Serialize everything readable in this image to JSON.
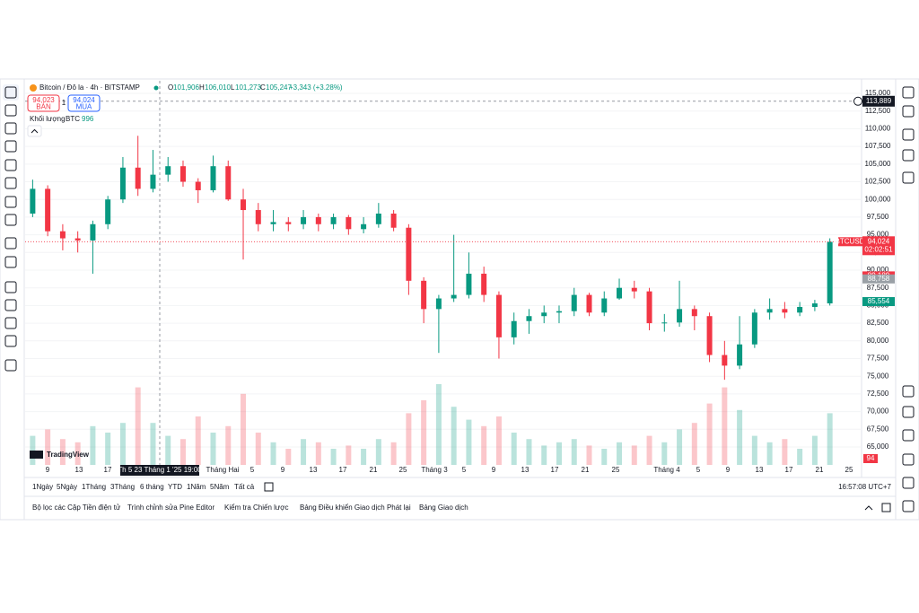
{
  "header": {
    "symbol": "Bitcoin / Đô la · 4h · BITSTAMP",
    "ohlc": [
      {
        "key": "O",
        "value": "101,906"
      },
      {
        "key": "H",
        "value": "106,010"
      },
      {
        "key": "L",
        "value": "101,273"
      },
      {
        "key": "C",
        "value": "105,247"
      }
    ],
    "change": "+3,343 (+3.28%)",
    "sell": {
      "price": "94,023",
      "label": "BÁN"
    },
    "spread": "1",
    "buy": {
      "price": "94,024",
      "label": "MUA"
    },
    "volume_label": "Khối lượng",
    "volume_unit": "BTC",
    "volume_value": "996"
  },
  "chart_data": {
    "type": "candlestick",
    "symbol_tag": "BTCUSD",
    "logo": "TradingView",
    "up_color": "#089981",
    "down_color": "#f23645",
    "open": [
      98000,
      101500,
      95500,
      94500,
      94200,
      96500,
      100000,
      104500,
      101500,
      103500,
      104700,
      102500,
      101300,
      104700,
      100000,
      98500,
      96500,
      96800,
      96500,
      97500,
      96500,
      97500,
      95800,
      96500,
      98000,
      96000,
      88500,
      84500,
      86000,
      86500,
      89500,
      86500,
      80500,
      82800,
      83500,
      84000,
      84200,
      86500,
      84000,
      86000,
      87500,
      87000,
      82500,
      82600,
      84500,
      83500,
      78000,
      76500,
      79500,
      84000,
      84500,
      84000,
      84800,
      85300
    ],
    "high": [
      102800,
      102000,
      96500,
      95500,
      97000,
      100500,
      106000,
      109000,
      107000,
      106000,
      105500,
      103000,
      106200,
      105500,
      101500,
      99500,
      98500,
      97500,
      98500,
      98000,
      98000,
      97800,
      97500,
      99500,
      98500,
      96500,
      89000,
      86500,
      95000,
      92500,
      90500,
      87000,
      84000,
      84500,
      85000,
      85000,
      87500,
      86800,
      87000,
      88800,
      88500,
      87500,
      83800,
      88500,
      85000,
      84000,
      80000,
      83500,
      84500,
      86000,
      85500,
      85500,
      85800,
      94500
    ],
    "low": [
      97500,
      94800,
      92800,
      92500,
      89500,
      95800,
      99500,
      100500,
      101000,
      102500,
      101800,
      99500,
      101000,
      99800,
      91500,
      95500,
      95500,
      95500,
      95800,
      95500,
      95800,
      95000,
      95200,
      96000,
      95500,
      86500,
      82500,
      78300,
      85500,
      86000,
      85500,
      77500,
      79500,
      81000,
      82500,
      82500,
      83500,
      83500,
      83500,
      85800,
      86000,
      81500,
      81300,
      82000,
      81500,
      77000,
      74500,
      76000,
      79000,
      83000,
      83200,
      83500,
      84200,
      85000
    ],
    "close": [
      101500,
      95500,
      94500,
      94200,
      96500,
      100000,
      104500,
      101500,
      103500,
      104700,
      102500,
      101300,
      104700,
      100000,
      98500,
      96500,
      96800,
      96500,
      97500,
      96500,
      97500,
      95800,
      96500,
      98000,
      96000,
      88500,
      84500,
      86000,
      86500,
      89500,
      86500,
      80500,
      82800,
      83500,
      84000,
      84200,
      86500,
      84000,
      86000,
      87500,
      87000,
      82500,
      82600,
      84500,
      83500,
      78000,
      76500,
      79500,
      84000,
      84500,
      84000,
      84800,
      85300,
      94000
    ],
    "volume": [
      900,
      1100,
      800,
      700,
      1200,
      1000,
      1300,
      2400,
      1300,
      900,
      800,
      1500,
      1000,
      1200,
      2200,
      1000,
      700,
      500,
      800,
      700,
      500,
      600,
      500,
      800,
      700,
      1600,
      2000,
      2500,
      1800,
      1400,
      1200,
      1500,
      1000,
      800,
      600,
      700,
      800,
      600,
      500,
      700,
      600,
      900,
      700,
      1100,
      1300,
      1900,
      2400,
      1700,
      900,
      700,
      800,
      500,
      900,
      1600
    ],
    "volume_tag": "94",
    "ylim": [
      62460,
      116780
    ],
    "yticks": [
      {
        "value": 65000,
        "label": "65,000"
      },
      {
        "value": 67500,
        "label": "67,500"
      },
      {
        "value": 70000,
        "label": "70,000"
      },
      {
        "value": 72500,
        "label": "72,500"
      },
      {
        "value": 75000,
        "label": "75,000"
      },
      {
        "value": 77500,
        "label": "77,500"
      },
      {
        "value": 80000,
        "label": "80,000"
      },
      {
        "value": 82500,
        "label": "82,500"
      },
      {
        "value": 85000,
        "label": "85,000"
      },
      {
        "value": 87500,
        "label": "87,500"
      },
      {
        "value": 90000,
        "label": "90,000"
      },
      {
        "value": 92500,
        "label": "92,500"
      },
      {
        "value": 95000,
        "label": "95,000"
      },
      {
        "value": 97500,
        "label": "97,500"
      },
      {
        "value": 100000,
        "label": "100,000"
      },
      {
        "value": 102500,
        "label": "102,500"
      },
      {
        "value": 105000,
        "label": "105,000"
      },
      {
        "value": 107500,
        "label": "107,500"
      },
      {
        "value": 110000,
        "label": "110,000"
      },
      {
        "value": 112500,
        "label": "112,500"
      },
      {
        "value": 115000,
        "label": "115,000"
      }
    ],
    "xticks": [
      "9",
      "13",
      "17",
      "Tháng Hai",
      "5",
      "9",
      "13",
      "17",
      "21",
      "25",
      "Tháng 3",
      "5",
      "9",
      "13",
      "17",
      "21",
      "25",
      "Tháng 4",
      "5",
      "9",
      "13",
      "17",
      "21",
      "25"
    ],
    "crosshair": {
      "time": "Th 5 23 Tháng 1 '25  19:00",
      "price": {
        "value": 113889,
        "label": "113,889"
      }
    },
    "price_labels": [
      {
        "value": 94024,
        "label": "94,024",
        "color": "#f23645"
      },
      {
        "value": 89189,
        "label": "89,189",
        "color": "#f23645"
      },
      {
        "value": 88758,
        "label": "88,758",
        "color": "#9aa0a6"
      },
      {
        "value": 85554,
        "label": "85,554",
        "color": "#089981"
      }
    ],
    "countdown": "02:02:51",
    "grid": true
  },
  "footer": {
    "ranges": [
      "1Ngày",
      "5Ngày",
      "1Tháng",
      "3Tháng",
      "6 tháng",
      "YTD",
      "1Năm",
      "5Năm",
      "Tất cả"
    ],
    "clock": "16:57:08 UTC+7",
    "tabs": [
      "Bộ lọc các Cặp Tiền điện tử",
      "Trình chỉnh sửa Pine Editor",
      "Kiểm tra Chiến lược",
      "Bảng Điều khiển Giao dịch Phát lại",
      "Bảng Giao dịch"
    ]
  }
}
